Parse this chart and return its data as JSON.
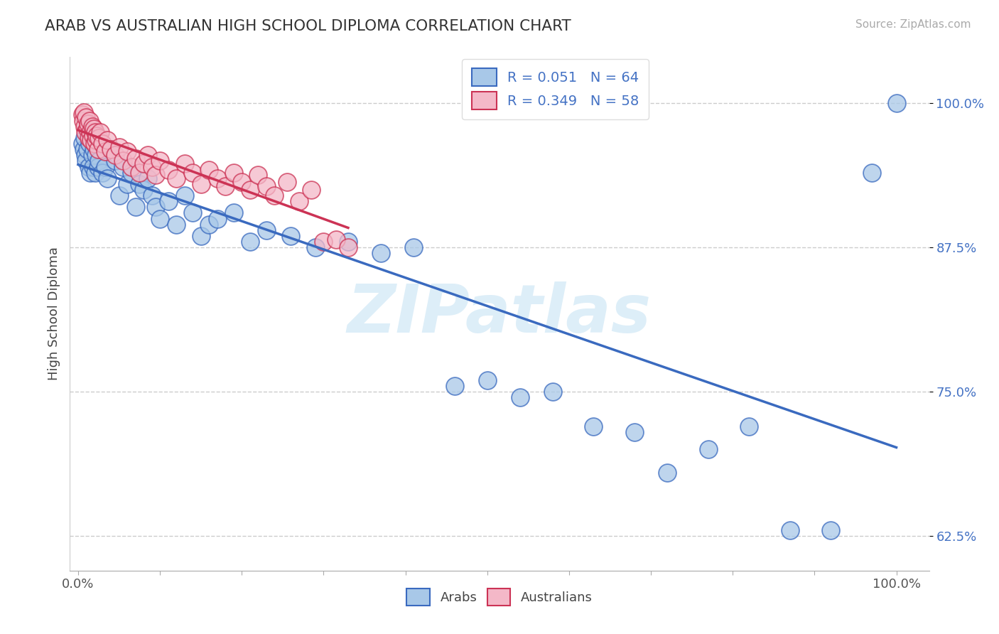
{
  "title": "ARAB VS AUSTRALIAN HIGH SCHOOL DIPLOMA CORRELATION CHART",
  "source": "Source: ZipAtlas.com",
  "ylabel": "High School Diploma",
  "y_tick_positions": [
    0.625,
    0.75,
    0.875,
    1.0
  ],
  "y_tick_labels": [
    "62.5%",
    "75.0%",
    "87.5%",
    "100.0%"
  ],
  "blue_color": "#a8c8e8",
  "pink_color": "#f4b8c8",
  "trend_blue": "#3a6abf",
  "trend_pink": "#cc3355",
  "label_color": "#4472c4",
  "watermark_color": "#ddeef8",
  "blue_r": 0.051,
  "blue_n": 64,
  "pink_r": 0.349,
  "pink_n": 58,
  "blue_x": [
    0.005,
    0.007,
    0.008,
    0.009,
    0.01,
    0.011,
    0.012,
    0.013,
    0.014,
    0.015,
    0.016,
    0.017,
    0.018,
    0.019,
    0.02,
    0.021,
    0.022,
    0.023,
    0.024,
    0.025,
    0.03,
    0.033,
    0.036,
    0.04,
    0.045,
    0.05,
    0.055,
    0.06,
    0.065,
    0.07,
    0.075,
    0.08,
    0.085,
    0.09,
    0.095,
    0.1,
    0.11,
    0.12,
    0.13,
    0.14,
    0.15,
    0.16,
    0.17,
    0.19,
    0.21,
    0.23,
    0.26,
    0.29,
    0.33,
    0.37,
    0.41,
    0.46,
    0.5,
    0.54,
    0.58,
    0.63,
    0.68,
    0.72,
    0.77,
    0.82,
    0.87,
    0.92,
    0.97,
    1.0
  ],
  "blue_y": [
    0.965,
    0.96,
    0.97,
    0.955,
    0.95,
    0.96,
    0.975,
    0.945,
    0.965,
    0.94,
    0.97,
    0.955,
    0.945,
    0.96,
    0.965,
    0.94,
    0.955,
    0.97,
    0.945,
    0.95,
    0.94,
    0.945,
    0.935,
    0.96,
    0.95,
    0.92,
    0.945,
    0.93,
    0.94,
    0.91,
    0.93,
    0.925,
    0.935,
    0.92,
    0.91,
    0.9,
    0.915,
    0.895,
    0.92,
    0.905,
    0.885,
    0.895,
    0.9,
    0.905,
    0.88,
    0.89,
    0.885,
    0.875,
    0.88,
    0.87,
    0.875,
    0.755,
    0.76,
    0.745,
    0.75,
    0.72,
    0.715,
    0.68,
    0.7,
    0.72,
    0.63,
    0.63,
    0.94,
    1.0
  ],
  "pink_x": [
    0.005,
    0.006,
    0.007,
    0.008,
    0.009,
    0.01,
    0.011,
    0.012,
    0.013,
    0.014,
    0.015,
    0.016,
    0.017,
    0.018,
    0.019,
    0.02,
    0.021,
    0.022,
    0.023,
    0.024,
    0.025,
    0.027,
    0.03,
    0.033,
    0.036,
    0.04,
    0.045,
    0.05,
    0.055,
    0.06,
    0.065,
    0.07,
    0.075,
    0.08,
    0.085,
    0.09,
    0.095,
    0.1,
    0.11,
    0.12,
    0.13,
    0.14,
    0.15,
    0.16,
    0.17,
    0.18,
    0.19,
    0.2,
    0.21,
    0.22,
    0.23,
    0.24,
    0.255,
    0.27,
    0.285,
    0.3,
    0.315,
    0.33
  ],
  "pink_y": [
    0.99,
    0.985,
    0.992,
    0.98,
    0.975,
    0.988,
    0.978,
    0.982,
    0.97,
    0.985,
    0.975,
    0.968,
    0.98,
    0.972,
    0.978,
    0.965,
    0.975,
    0.968,
    0.972,
    0.96,
    0.97,
    0.975,
    0.965,
    0.958,
    0.968,
    0.96,
    0.955,
    0.962,
    0.95,
    0.958,
    0.945,
    0.952,
    0.94,
    0.948,
    0.955,
    0.945,
    0.938,
    0.95,
    0.942,
    0.935,
    0.948,
    0.94,
    0.93,
    0.942,
    0.935,
    0.928,
    0.94,
    0.932,
    0.925,
    0.938,
    0.928,
    0.92,
    0.932,
    0.915,
    0.925,
    0.88,
    0.882,
    0.875
  ]
}
